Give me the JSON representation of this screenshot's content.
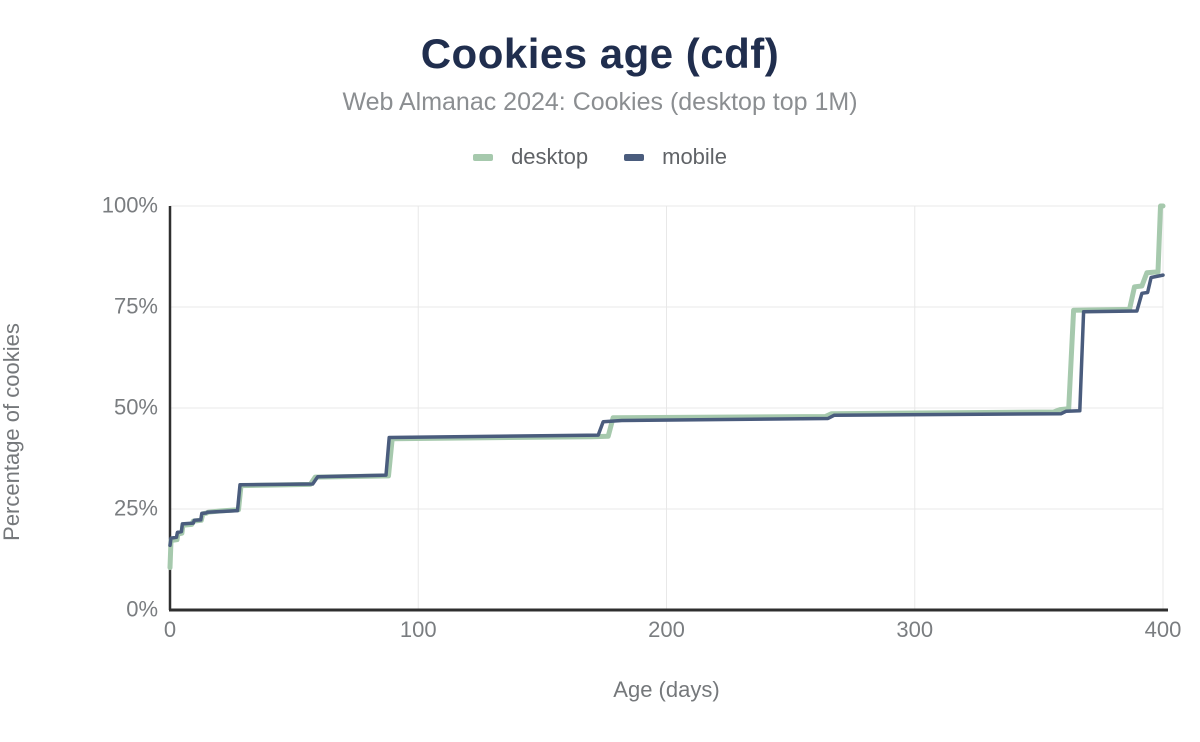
{
  "chart_data": {
    "type": "line",
    "title": "Cookies age (cdf)",
    "subtitle": "Web Almanac 2024: Cookies (desktop top 1M)",
    "xlabel": "Age (days)",
    "ylabel": "Percentage of cookies",
    "xlim": [
      0,
      400
    ],
    "ylim": [
      0,
      100
    ],
    "x_ticks": [
      0,
      100,
      200,
      300,
      400
    ],
    "y_ticks": [
      0,
      25,
      50,
      75,
      100
    ],
    "y_tick_suffix": "%",
    "grid": true,
    "legend_position": "top",
    "series": [
      {
        "name": "desktop",
        "color": "#a6c9ad",
        "stroke_width": 5,
        "points": [
          [
            0,
            10.5
          ],
          [
            0.4,
            17.2
          ],
          [
            2.8,
            17.4
          ],
          [
            3.2,
            18.8
          ],
          [
            4.8,
            19.0
          ],
          [
            5.2,
            21.0
          ],
          [
            8.8,
            21.2
          ],
          [
            9.4,
            22.0
          ],
          [
            12.6,
            22.2
          ],
          [
            13.2,
            23.8
          ],
          [
            14.8,
            24.0
          ],
          [
            15.4,
            24.2
          ],
          [
            20,
            24.5
          ],
          [
            27.6,
            24.8
          ],
          [
            28.6,
            30.8
          ],
          [
            56.5,
            31.1
          ],
          [
            58.5,
            32.9
          ],
          [
            88,
            33.2
          ],
          [
            89.5,
            42.4
          ],
          [
            170,
            42.9
          ],
          [
            176.5,
            43.0
          ],
          [
            178.5,
            47.6
          ],
          [
            264,
            47.9
          ],
          [
            266.5,
            48.6
          ],
          [
            356,
            49.0
          ],
          [
            358.5,
            49.6
          ],
          [
            362,
            49.8
          ],
          [
            364,
            74.2
          ],
          [
            386.5,
            74.4
          ],
          [
            388.5,
            80.0
          ],
          [
            391.5,
            80.2
          ],
          [
            393.5,
            83.5
          ],
          [
            398,
            83.7
          ],
          [
            399,
            100
          ],
          [
            400,
            100
          ]
        ]
      },
      {
        "name": "mobile",
        "color": "#4a5c7d",
        "stroke_width": 3.5,
        "points": [
          [
            0,
            16.0
          ],
          [
            0.4,
            17.8
          ],
          [
            2.6,
            18.0
          ],
          [
            3.0,
            19.2
          ],
          [
            4.6,
            19.4
          ],
          [
            5.0,
            21.3
          ],
          [
            9.4,
            21.5
          ],
          [
            9.8,
            22.2
          ],
          [
            12.4,
            22.3
          ],
          [
            12.8,
            23.9
          ],
          [
            14.6,
            24.0
          ],
          [
            15.0,
            24.2
          ],
          [
            27.2,
            24.6
          ],
          [
            28.2,
            31.0
          ],
          [
            57.5,
            31.2
          ],
          [
            59.5,
            33.0
          ],
          [
            87,
            33.4
          ],
          [
            88.3,
            42.7
          ],
          [
            172.5,
            43.3
          ],
          [
            174.5,
            46.6
          ],
          [
            182,
            46.9
          ],
          [
            265,
            47.4
          ],
          [
            267.5,
            48.2
          ],
          [
            359,
            48.6
          ],
          [
            361,
            49.2
          ],
          [
            366.5,
            49.3
          ],
          [
            368,
            73.8
          ],
          [
            389.5,
            74.0
          ],
          [
            391.5,
            78.4
          ],
          [
            393.8,
            78.6
          ],
          [
            395.2,
            82.3
          ],
          [
            400,
            82.9
          ]
        ]
      }
    ]
  },
  "style": {
    "title_color": "#202e4e",
    "subtitle_color": "#8b8e91",
    "legend_label_color": "#606367",
    "tick_color": "#7a7d80",
    "axis_title_color": "#75787b",
    "grid_color": "#e8e8e8",
    "axis_color": "#2f2f2f",
    "background": "#ffffff"
  }
}
